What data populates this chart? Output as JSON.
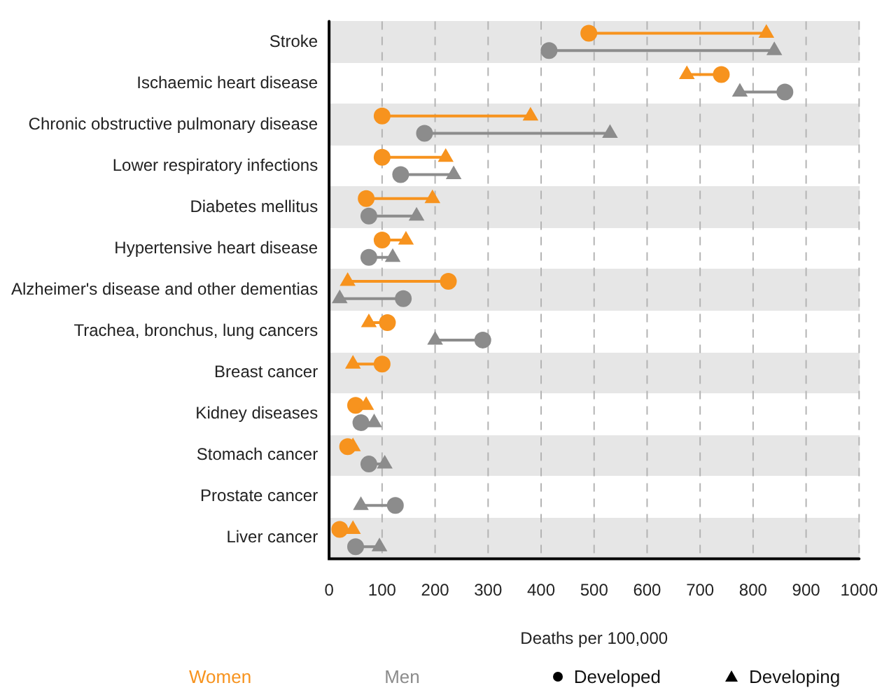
{
  "chart_data": {
    "type": "scatter",
    "orientation": "horizontal",
    "xlabel": "Deaths per 100,000",
    "categories": [
      "Stroke",
      "Ischaemic heart disease",
      "Chronic obstructive pulmonary disease",
      "Lower respiratory infections",
      "Diabetes mellitus",
      "Hypertensive heart disease",
      "Alzheimer's disease and other dementias",
      "Trachea, bronchus, lung cancers",
      "Breast cancer",
      "Kidney diseases",
      "Stomach cancer",
      "Prostate cancer",
      "Liver cancer"
    ],
    "series": [
      {
        "name": "Women",
        "color": "#f7931e",
        "marker": "circle",
        "values": [
          490,
          740,
          100,
          100,
          70,
          100,
          225,
          110,
          100,
          50,
          35,
          null,
          20
        ]
      },
      {
        "color": "#f7931e",
        "marker": "triangle",
        "values": [
          825,
          675,
          380,
          220,
          195,
          145,
          35,
          75,
          45,
          70,
          45,
          null,
          45
        ]
      },
      {
        "name": "Men",
        "color": "#8c8c8c",
        "marker": "circle",
        "values": [
          415,
          860,
          180,
          135,
          75,
          75,
          140,
          290,
          null,
          60,
          75,
          125,
          50
        ]
      },
      {
        "color": "#8c8c8c",
        "marker": "triangle",
        "values": [
          840,
          775,
          530,
          235,
          165,
          120,
          20,
          200,
          null,
          85,
          105,
          60,
          95
        ]
      }
    ],
    "annotations": [
      "Developed",
      "Developing"
    ],
    "xlim": [
      0,
      1000
    ],
    "xticks": [
      0,
      100,
      200,
      300,
      400,
      500,
      600,
      700,
      800,
      900,
      1000
    ],
    "grid": "x",
    "legend": "bottom"
  }
}
